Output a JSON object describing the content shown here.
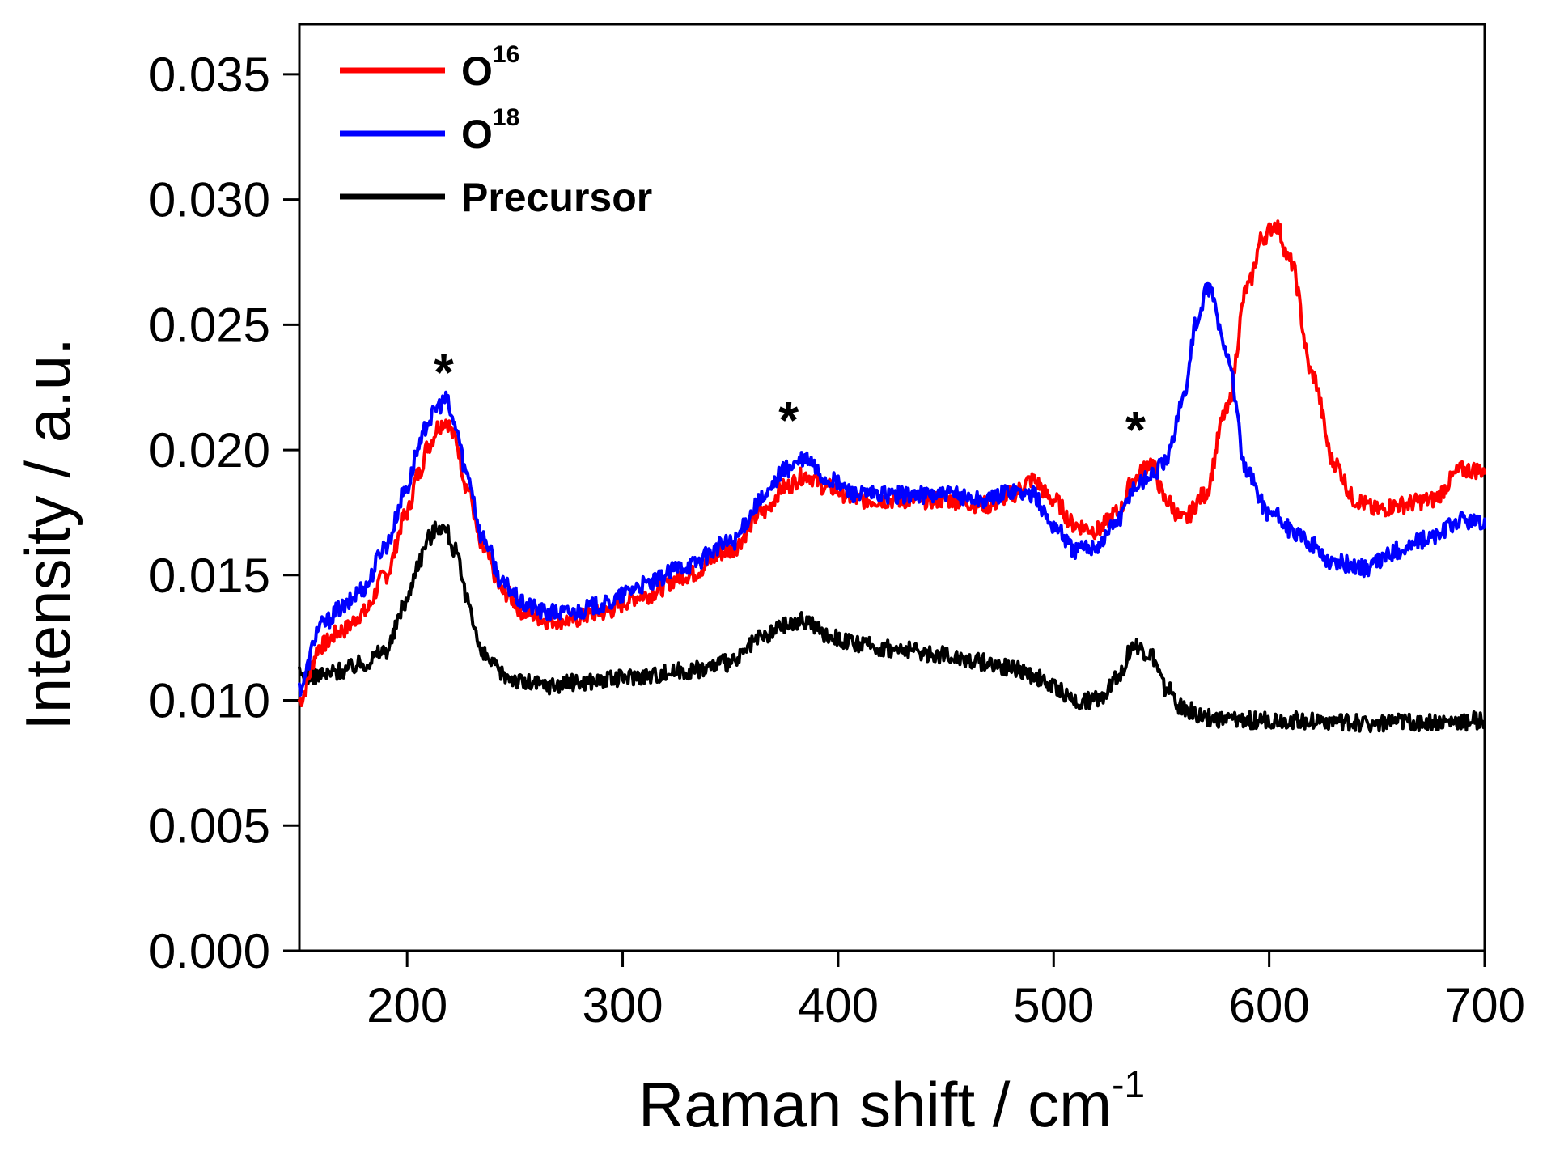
{
  "chart_data": {
    "type": "line",
    "title": "",
    "xlabel": "Raman shift / cm",
    "xlabel_sup": "-1",
    "ylabel": "Intensity / a.u.",
    "xlim": [
      150,
      700
    ],
    "ylim": [
      0.0,
      0.037
    ],
    "x_ticks": [
      200,
      300,
      400,
      500,
      600,
      700
    ],
    "x_tick_labels": [
      "200",
      "300",
      "400",
      "500",
      "600",
      "700"
    ],
    "y_ticks": [
      0.0,
      0.005,
      0.01,
      0.015,
      0.02,
      0.025,
      0.03,
      0.035
    ],
    "y_tick_labels": [
      "0.000",
      "0.005",
      "0.010",
      "0.015",
      "0.020",
      "0.025",
      "0.030",
      "0.035"
    ],
    "grid": false,
    "legend_position": "top-left",
    "annotations": [
      {
        "text": "*",
        "x": 217,
        "y": 0.0233
      },
      {
        "text": "*",
        "x": 377,
        "y": 0.0214
      },
      {
        "text": "*",
        "x": 538,
        "y": 0.021
      }
    ],
    "series": [
      {
        "name": "O",
        "sup": "16",
        "color": "#ff0000",
        "x": [
          150,
          160,
          170,
          180,
          190,
          200,
          205,
          210,
          215,
          218,
          222,
          228,
          235,
          245,
          255,
          265,
          275,
          290,
          310,
          330,
          350,
          365,
          375,
          385,
          395,
          410,
          430,
          450,
          470,
          480,
          490,
          500,
          510,
          520,
          530,
          537,
          545,
          552,
          560,
          570,
          580,
          590,
          597,
          603,
          610,
          620,
          630,
          640,
          650,
          660,
          675,
          690,
          700
        ],
        "y": [
          0.01,
          0.0122,
          0.0128,
          0.0135,
          0.015,
          0.0175,
          0.019,
          0.0202,
          0.021,
          0.0212,
          0.0205,
          0.0185,
          0.016,
          0.0143,
          0.0135,
          0.0132,
          0.0132,
          0.0135,
          0.0142,
          0.015,
          0.016,
          0.0175,
          0.0185,
          0.019,
          0.0185,
          0.018,
          0.018,
          0.018,
          0.0178,
          0.0182,
          0.0188,
          0.018,
          0.017,
          0.0168,
          0.0175,
          0.0188,
          0.0195,
          0.018,
          0.0172,
          0.0182,
          0.0215,
          0.0265,
          0.0285,
          0.029,
          0.0275,
          0.023,
          0.0195,
          0.018,
          0.0176,
          0.0178,
          0.018,
          0.0192,
          0.0192
        ]
      },
      {
        "name": "O",
        "sup": "18",
        "color": "#0000ff",
        "x": [
          150,
          160,
          170,
          180,
          190,
          200,
          205,
          210,
          215,
          218,
          222,
          228,
          235,
          245,
          255,
          265,
          275,
          290,
          310,
          330,
          350,
          365,
          375,
          385,
          395,
          410,
          430,
          450,
          470,
          480,
          490,
          500,
          510,
          520,
          530,
          537,
          545,
          552,
          560,
          566,
          572,
          580,
          590,
          600,
          615,
          630,
          645,
          660,
          675,
          690,
          700
        ],
        "y": [
          0.0105,
          0.013,
          0.0137,
          0.0145,
          0.0162,
          0.0185,
          0.02,
          0.0212,
          0.0218,
          0.022,
          0.021,
          0.019,
          0.0165,
          0.0146,
          0.0138,
          0.0135,
          0.0135,
          0.0138,
          0.0146,
          0.0154,
          0.0163,
          0.018,
          0.0192,
          0.0196,
          0.0188,
          0.0182,
          0.0182,
          0.0182,
          0.018,
          0.0184,
          0.0182,
          0.017,
          0.016,
          0.0162,
          0.0172,
          0.0185,
          0.019,
          0.0195,
          0.022,
          0.025,
          0.0265,
          0.024,
          0.019,
          0.0175,
          0.0165,
          0.0155,
          0.0153,
          0.016,
          0.0165,
          0.0172,
          0.017
        ]
      },
      {
        "name": "Precursor",
        "sup": "",
        "color": "#000000",
        "x": [
          150,
          160,
          170,
          180,
          190,
          200,
          205,
          210,
          215,
          218,
          222,
          228,
          235,
          245,
          255,
          265,
          275,
          290,
          310,
          330,
          350,
          365,
          375,
          385,
          395,
          410,
          430,
          450,
          470,
          480,
          490,
          500,
          510,
          520,
          530,
          537,
          545,
          552,
          560,
          570,
          580,
          600,
          620,
          640,
          660,
          680,
          700
        ],
        "y": [
          0.011,
          0.011,
          0.0112,
          0.0115,
          0.012,
          0.014,
          0.0155,
          0.0165,
          0.017,
          0.0168,
          0.016,
          0.014,
          0.0118,
          0.011,
          0.0107,
          0.0106,
          0.0107,
          0.0108,
          0.011,
          0.0112,
          0.0115,
          0.0125,
          0.013,
          0.0132,
          0.0126,
          0.0122,
          0.012,
          0.0118,
          0.0115,
          0.0113,
          0.011,
          0.0105,
          0.01,
          0.01,
          0.011,
          0.0122,
          0.0118,
          0.0105,
          0.0097,
          0.0093,
          0.0092,
          0.0092,
          0.0092,
          0.0091,
          0.0091,
          0.0091,
          0.0092
        ]
      }
    ]
  }
}
